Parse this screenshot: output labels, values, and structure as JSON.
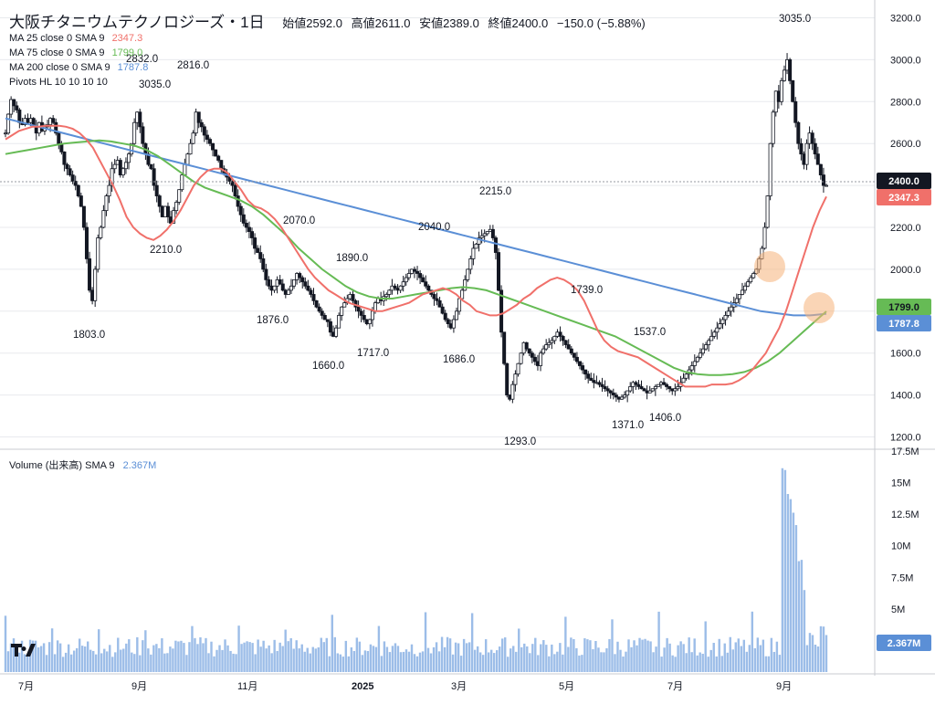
{
  "title": {
    "name": "大阪チタニウムテクノロジーズ・1日",
    "open_label": "始値",
    "open": "2592.0",
    "high_label": "高値",
    "high": "2611.0",
    "low_label": "安値",
    "low": "2389.0",
    "close_label": "終値",
    "close": "2400.0",
    "change": "−150.0 (−5.88%)"
  },
  "indicators": [
    {
      "label": "MA 25 close 0 SMA 9",
      "value": "2347.3",
      "color": "#f0706a"
    },
    {
      "label": "MA 75 close 0 SMA 9",
      "value": "1799.0",
      "color": "#66bb55"
    },
    {
      "label": "MA 200 close 0 SMA 9",
      "value": "1787.8",
      "color": "#5b8fd6"
    },
    {
      "label": "Pivots HL 10 10 10 10",
      "value": "",
      "color": "#131722"
    }
  ],
  "volume_label": {
    "label": "Volume (出来高)",
    "sma": "SMA 9",
    "value": "2.367M",
    "color": "#5b8fd6"
  },
  "colors": {
    "up": "#ffffff",
    "down": "#131722",
    "grid": "#e8eaee",
    "axis_border": "#c8cbd1",
    "price_line": "#9598a1"
  },
  "price_axis": {
    "ticks": [
      "3200.0",
      "3000.0",
      "2800.0",
      "2600.0",
      "2400.0",
      "2200.0",
      "2000.0",
      "1800.0",
      "1600.0",
      "1400.0",
      "1200.0"
    ],
    "ylim": [
      1150,
      3250
    ]
  },
  "volume_axis": {
    "ticks": [
      "17.5M",
      "15M",
      "12.5M",
      "10M",
      "7.5M",
      "5M"
    ],
    "ylim": [
      0,
      17.5
    ]
  },
  "time_axis": [
    "7月",
    "9月",
    "11月",
    "2025",
    "3月",
    "5月",
    "7月",
    "9月"
  ],
  "badges": [
    {
      "text": "2400.0",
      "price": 2400,
      "bg": "#131722",
      "fg": "#ffffff"
    },
    {
      "text": "2347.3",
      "price": 2347.3,
      "bg": "#f0706a",
      "fg": "#ffffff"
    },
    {
      "text": "1799.0",
      "price": 1799,
      "bg": "#66bb55",
      "fg": "#131722"
    },
    {
      "text": "1787.8",
      "price": 1787.8,
      "bg": "#5b8fd6",
      "fg": "#ffffff"
    },
    {
      "text": "2.367M",
      "volume": 2.367,
      "bg": "#5b8fd6",
      "fg": "#ffffff"
    }
  ],
  "chart_data": {
    "type": "candlestick",
    "bars_count": 300,
    "pivots": [
      {
        "label": "2832.0",
        "bar": 46
      },
      {
        "label": "2816.0",
        "bar": 67
      },
      {
        "label": "3035.0",
        "bar": 49
      },
      {
        "label": "1803.0",
        "bar": 32
      },
      {
        "label": "2210.0",
        "bar": 60
      },
      {
        "label": "2070.0",
        "bar": 110
      },
      {
        "label": "1876.0",
        "bar": 98
      },
      {
        "label": "1890.0",
        "bar": 126
      },
      {
        "label": "1660.0",
        "bar": 118
      },
      {
        "label": "1717.0",
        "bar": 135
      },
      {
        "label": "2040.0",
        "bar": 157
      },
      {
        "label": "1686.0",
        "bar": 165
      },
      {
        "label": "2215.0",
        "bar": 180
      },
      {
        "label": "1293.0",
        "bar": 188
      },
      {
        "label": "1739.0",
        "bar": 212
      },
      {
        "label": "1537.0",
        "bar": 236
      },
      {
        "label": "1371.0",
        "bar": 227
      },
      {
        "label": "1406.0",
        "bar": 240
      },
      {
        "label": "3035.0",
        "bar": 287
      }
    ],
    "closes": [
      2650,
      2740,
      2810,
      2780,
      2760,
      2700,
      2690,
      2720,
      2700,
      2720,
      2680,
      2650,
      2700,
      2660,
      2680,
      2690,
      2720,
      2700,
      2650,
      2600,
      2560,
      2500,
      2480,
      2450,
      2420,
      2400,
      2350,
      2300,
      2200,
      2050,
      1900,
      1850,
      2000,
      2150,
      2200,
      2280,
      2350,
      2400,
      2480,
      2500,
      2520,
      2450,
      2480,
      2510,
      2550,
      2600,
      2700,
      2750,
      2680,
      2600,
      2550,
      2500,
      2480,
      2400,
      2350,
      2300,
      2250,
      2300,
      2250,
      2220,
      2280,
      2320,
      2380,
      2450,
      2500,
      2550,
      2600,
      2650,
      2750,
      2700,
      2680,
      2640,
      2620,
      2600,
      2570,
      2540,
      2520,
      2480,
      2460,
      2440,
      2420,
      2400,
      2350,
      2300,
      2260,
      2220,
      2200,
      2180,
      2150,
      2100,
      2080,
      2050,
      2000,
      1950,
      1920,
      1900,
      1920,
      1950,
      1930,
      1900,
      1880,
      1900,
      1920,
      1950,
      1980,
      1960,
      1940,
      1920,
      1900,
      1880,
      1850,
      1820,
      1800,
      1780,
      1760,
      1750,
      1700,
      1680,
      1720,
      1780,
      1820,
      1840,
      1860,
      1880,
      1850,
      1820,
      1800,
      1780,
      1760,
      1740,
      1760,
      1800,
      1840,
      1860,
      1850,
      1870,
      1880,
      1900,
      1920,
      1910,
      1900,
      1920,
      1940,
      1960,
      1980,
      2000,
      1990,
      1980,
      1960,
      1940,
      1920,
      1900,
      1880,
      1860,
      1850,
      1820,
      1790,
      1760,
      1740,
      1720,
      1760,
      1800,
      1860,
      1900,
      1950,
      2000,
      2050,
      2100,
      2120,
      2150,
      2160,
      2170,
      2180,
      2190,
      2150,
      2080,
      1900,
      1700,
      1550,
      1400,
      1380,
      1450,
      1500,
      1550,
      1600,
      1650,
      1620,
      1600,
      1580,
      1560,
      1540,
      1600,
      1620,
      1640,
      1650,
      1660,
      1680,
      1700,
      1680,
      1660,
      1640,
      1620,
      1600,
      1580,
      1560,
      1540,
      1520,
      1500,
      1480,
      1470,
      1460,
      1460,
      1450,
      1440,
      1430,
      1420,
      1410,
      1400,
      1390,
      1380,
      1390,
      1400,
      1420,
      1440,
      1460,
      1450,
      1440,
      1430,
      1420,
      1410,
      1420,
      1430,
      1440,
      1450,
      1460,
      1450,
      1440,
      1430,
      1420,
      1430,
      1440,
      1460,
      1480,
      1500,
      1520,
      1540,
      1560,
      1580,
      1600,
      1620,
      1640,
      1660,
      1680,
      1700,
      1720,
      1740,
      1760,
      1780,
      1800,
      1820,
      1840,
      1860,
      1880,
      1900,
      1920,
      1940,
      1960,
      1980,
      2000,
      2050,
      2100,
      2200,
      2350,
      2600,
      2750,
      2850,
      2800,
      2900,
      2950,
      3000,
      2900,
      2800,
      2700,
      2600,
      2550,
      2500,
      2600,
      2650,
      2600,
      2550,
      2500,
      2450,
      2400,
      2400
    ],
    "ma25": [
      2620,
      2640,
      2660,
      2670,
      2680,
      2680,
      2685,
      2685,
      2685,
      2680,
      2670,
      2650,
      2620,
      2580,
      2520,
      2460,
      2400,
      2330,
      2250,
      2200,
      2170,
      2150,
      2140,
      2160,
      2190,
      2230,
      2280,
      2340,
      2400,
      2440,
      2470,
      2480,
      2480,
      2460,
      2420,
      2380,
      2330,
      2300,
      2290,
      2270,
      2240,
      2200,
      2150,
      2100,
      2050,
      2000,
      1960,
      1930,
      1900,
      1880,
      1860,
      1840,
      1830,
      1820,
      1810,
      1800,
      1800,
      1810,
      1820,
      1830,
      1840,
      1860,
      1880,
      1890,
      1900,
      1910,
      1900,
      1880,
      1850,
      1830,
      1800,
      1790,
      1780,
      1780,
      1790,
      1810,
      1830,
      1860,
      1880,
      1910,
      1930,
      1950,
      1960,
      1950,
      1930,
      1900,
      1850,
      1780,
      1710,
      1660,
      1630,
      1610,
      1600,
      1590,
      1580,
      1560,
      1540,
      1520,
      1500,
      1480,
      1460,
      1440,
      1440,
      1440,
      1440,
      1450,
      1450,
      1450,
      1455,
      1470,
      1490,
      1520,
      1560,
      1600,
      1660,
      1720,
      1800,
      1900,
      2000,
      2100,
      2200,
      2280,
      2347
    ],
    "ma75": [
      2550,
      2560,
      2570,
      2580,
      2590,
      2600,
      2605,
      2610,
      2615,
      2610,
      2600,
      2590,
      2570,
      2540,
      2500,
      2460,
      2420,
      2390,
      2370,
      2350,
      2330,
      2300,
      2260,
      2210,
      2160,
      2100,
      2050,
      2000,
      1960,
      1920,
      1890,
      1870,
      1860,
      1860,
      1870,
      1880,
      1890,
      1900,
      1910,
      1915,
      1910,
      1900,
      1880,
      1860,
      1840,
      1820,
      1800,
      1780,
      1760,
      1740,
      1720,
      1700,
      1680,
      1650,
      1620,
      1590,
      1560,
      1530,
      1510,
      1500,
      1495,
      1495,
      1500,
      1510,
      1530,
      1560,
      1600,
      1650,
      1700,
      1750,
      1799
    ],
    "ma200": [
      2720,
      2700,
      2680,
      2660,
      2640,
      2620,
      2600,
      2580,
      2560,
      2540,
      2520,
      2500,
      2480,
      2460,
      2440,
      2420,
      2400,
      2380,
      2360,
      2340,
      2320,
      2300,
      2280,
      2260,
      2240,
      2220,
      2200,
      2180,
      2160,
      2140,
      2120,
      2100,
      2080,
      2060,
      2040,
      2020,
      2000,
      1980,
      1960,
      1940,
      1920,
      1900,
      1880,
      1860,
      1840,
      1820,
      1800,
      1790,
      1780,
      1780,
      1787.8
    ],
    "volume_sma": 2.367
  }
}
